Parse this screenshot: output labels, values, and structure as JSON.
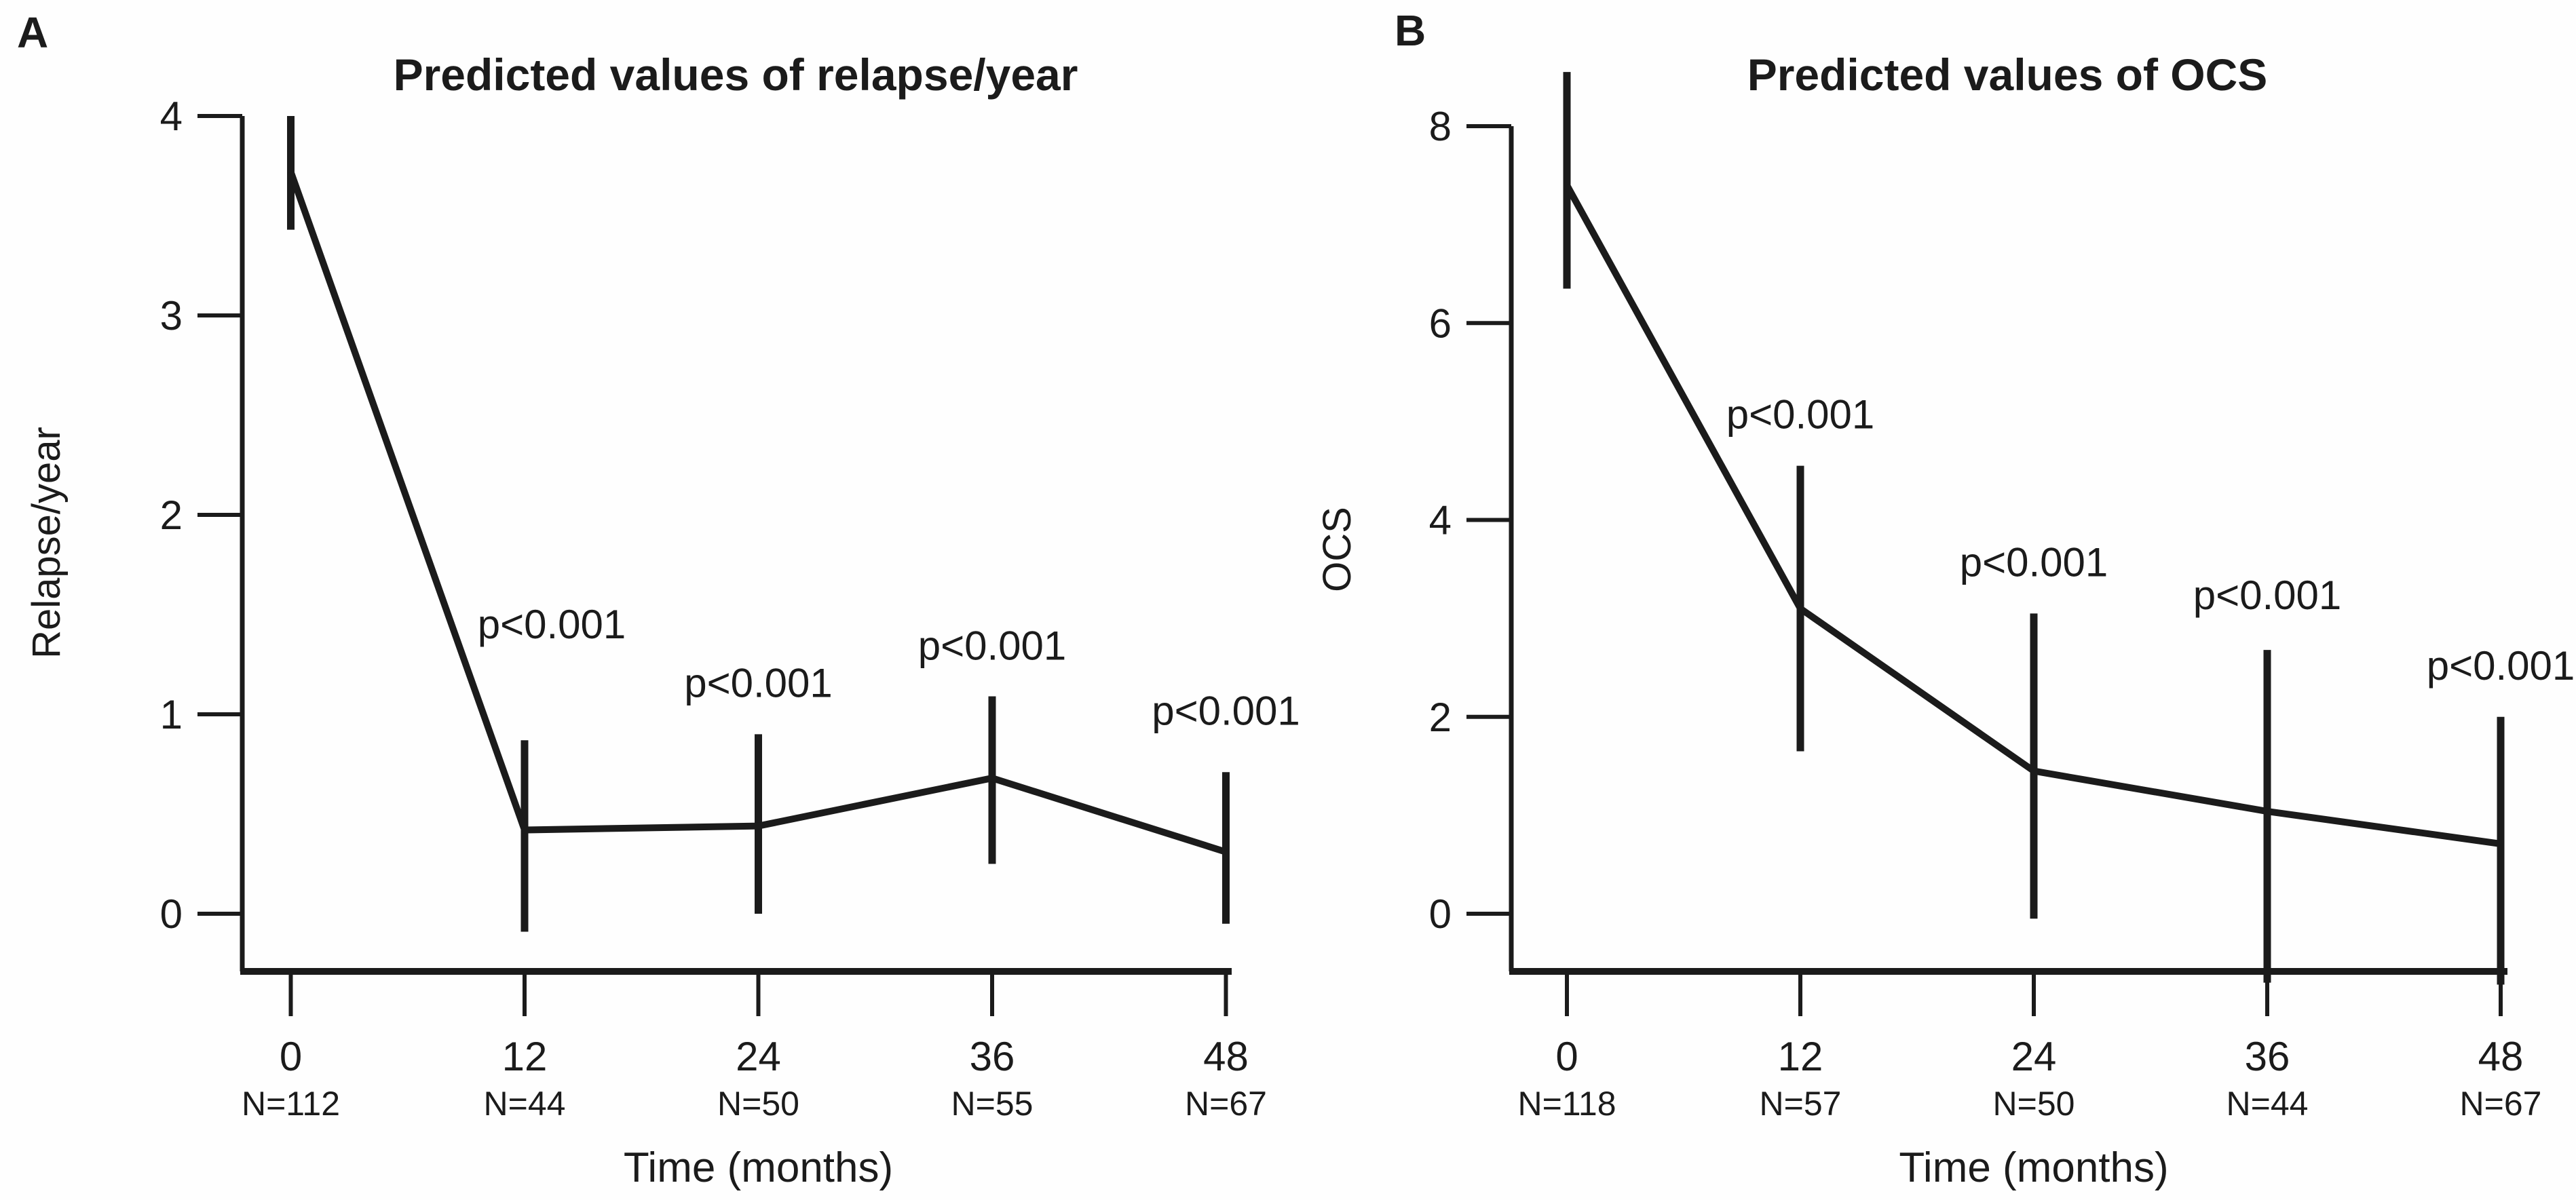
{
  "figure": {
    "background": "#fefefe",
    "ink_color": "#1b1b1b",
    "caption": ""
  },
  "chart_data": [
    {
      "type": "line",
      "panel_label": "A",
      "title": "Predicted values of relapse/year",
      "xlabel": "Time (months)",
      "ylabel": "Relapse/year",
      "x": [
        0,
        12,
        24,
        36,
        48
      ],
      "x_tick_labels": [
        "0",
        "12",
        "24",
        "36",
        "48"
      ],
      "n_labels": [
        "N=112",
        "N=44",
        "N=50",
        "N=55",
        "N=67"
      ],
      "values": [
        3.72,
        0.42,
        0.44,
        0.68,
        0.31
      ],
      "ci_low": [
        3.43,
        -0.09,
        0.0,
        0.25,
        -0.05
      ],
      "ci_high": [
        4.0,
        0.87,
        0.9,
        1.09,
        0.71
      ],
      "p_labels": [
        "",
        "p<0.001",
        "p<0.001",
        "p<0.001",
        "p<0.001"
      ],
      "ylim": [
        0,
        4
      ],
      "yticks": [
        0,
        1,
        2,
        3,
        4
      ],
      "grid": false,
      "legend": null,
      "error_bars": true,
      "line_color": "#1b1b1b"
    },
    {
      "type": "line",
      "panel_label": "B",
      "title": "Predicted values of OCS",
      "xlabel": "Time (months)",
      "ylabel": "OCS",
      "x": [
        0,
        12,
        24,
        36,
        48
      ],
      "x_tick_labels": [
        "0",
        "12",
        "24",
        "36",
        "48"
      ],
      "n_labels": [
        "N=118",
        "N=57",
        "N=50",
        "N=44",
        "N=67"
      ],
      "values": [
        7.4,
        3.1,
        1.45,
        1.04,
        0.71
      ],
      "ci_low": [
        6.35,
        1.65,
        -0.05,
        -0.7,
        -0.72
      ],
      "ci_high": [
        8.55,
        4.55,
        3.05,
        2.68,
        2.0
      ],
      "p_labels": [
        "",
        "p<0.001",
        "p<0.001",
        "p<0.001",
        "p<0.001"
      ],
      "ylim": [
        0,
        8
      ],
      "yticks": [
        0,
        2,
        4,
        6,
        8
      ],
      "grid": false,
      "legend": null,
      "error_bars": true,
      "line_color": "#1b1b1b"
    }
  ]
}
